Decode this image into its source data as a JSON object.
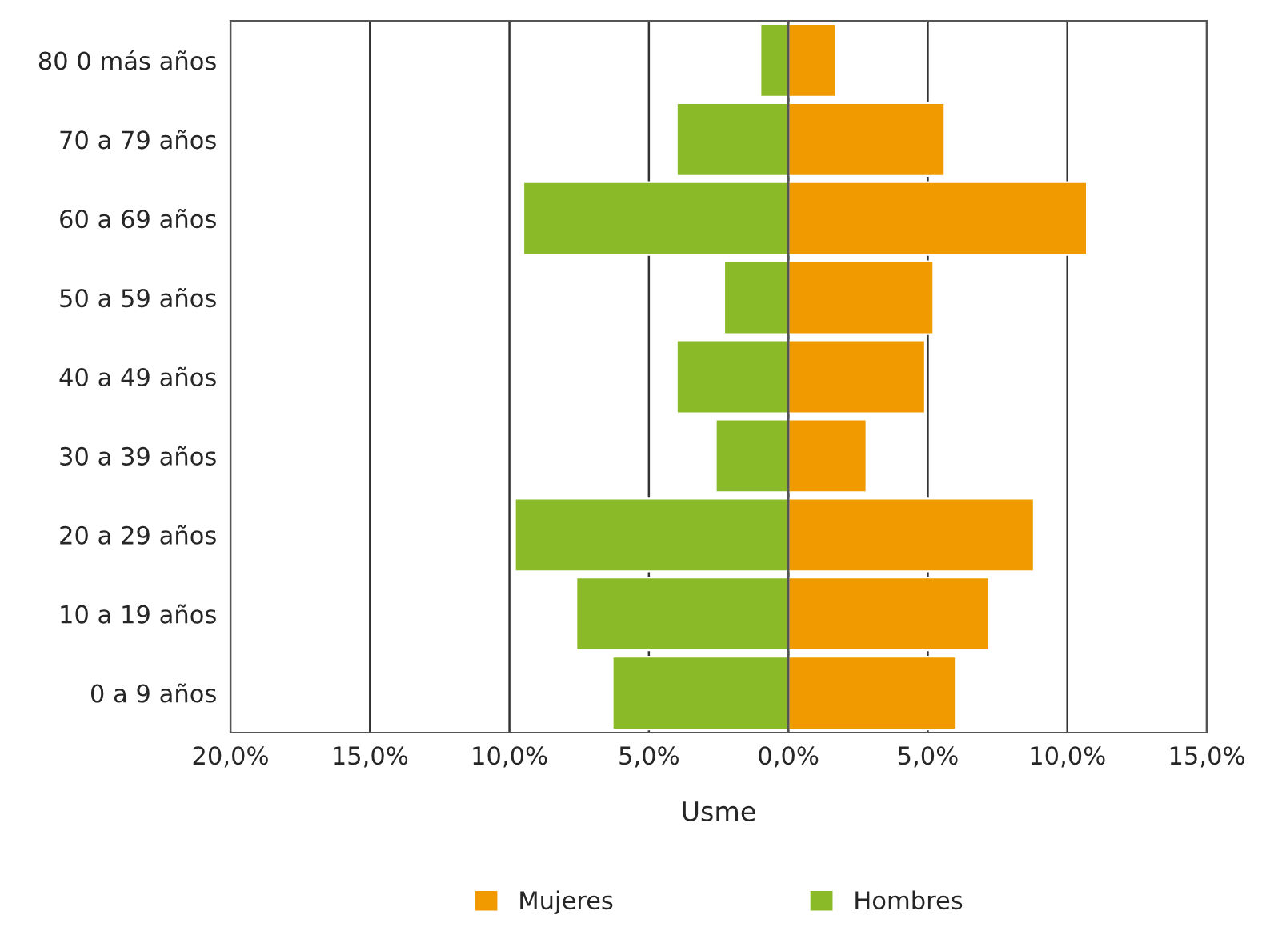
{
  "chart_data": {
    "type": "bar",
    "orientation": "horizontal",
    "xlabel": "Usme",
    "categories": [
      "80 0 más años",
      "70 a 79 años",
      "60 a 69 años",
      "50 a 59 años",
      "40 a 49 años",
      "30 a 39 años",
      "20 a 29 años",
      "10 a 19 años",
      "0 a 9 años"
    ],
    "series": [
      {
        "name": "Mujeres",
        "color": "#f09a00",
        "values": [
          1.7,
          5.6,
          10.7,
          5.2,
          4.9,
          2.8,
          8.8,
          7.2,
          6.0
        ]
      },
      {
        "name": "Hombres",
        "color": "#8aba27",
        "values": [
          -1.0,
          -4.0,
          -9.5,
          -2.3,
          -4.0,
          -2.6,
          -9.8,
          -7.6,
          -6.3
        ]
      }
    ],
    "xlim": [
      -20,
      15
    ],
    "xticks": [
      {
        "value": -20,
        "label": "20,0%"
      },
      {
        "value": -15,
        "label": "15,0%"
      },
      {
        "value": -10,
        "label": "10,0%"
      },
      {
        "value": -5,
        "label": "5,0%"
      },
      {
        "value": 0,
        "label": "0,0%"
      },
      {
        "value": 5,
        "label": "5,0%"
      },
      {
        "value": 10,
        "label": "10,0%"
      },
      {
        "value": 15,
        "label": "15,0%"
      }
    ],
    "grid": "x",
    "legend": "bottom",
    "stacked": true
  }
}
